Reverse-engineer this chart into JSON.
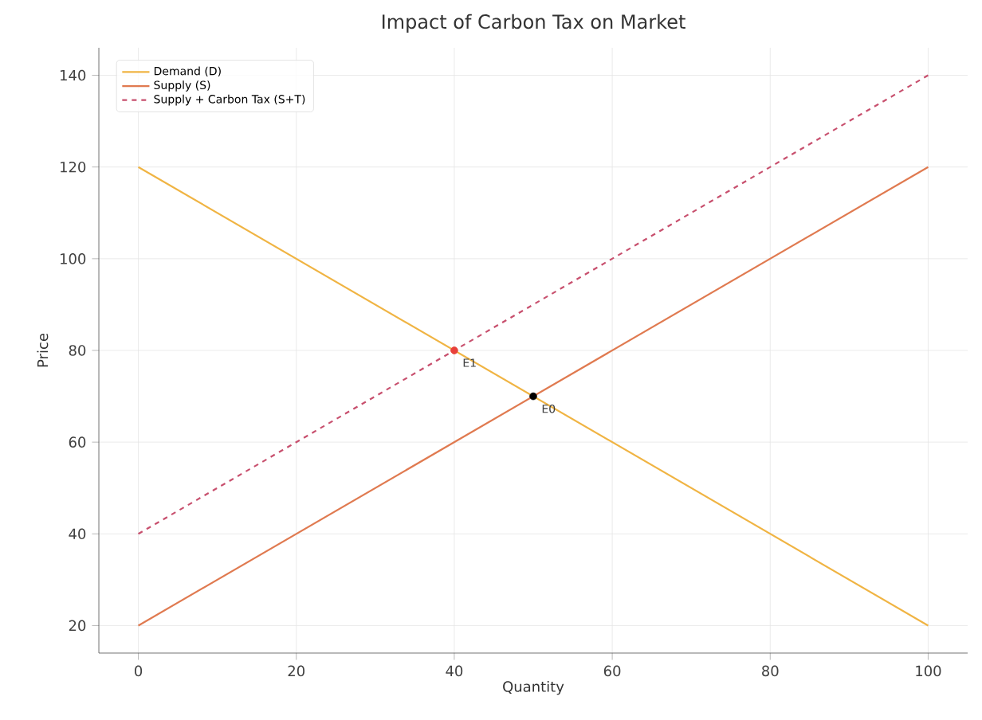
{
  "chart_data": {
    "type": "line",
    "title": "Impact of Carbon Tax on Market",
    "xlabel": "Quantity",
    "ylabel": "Price",
    "series": [
      {
        "name": "Demand (D)",
        "color": "#f0b443",
        "x": [
          0,
          100
        ],
        "values": [
          120,
          20
        ],
        "line_style": "solid"
      },
      {
        "name": "Supply (S)",
        "color": "#e07a50",
        "x": [
          0,
          100
        ],
        "values": [
          20,
          120
        ],
        "line_style": "solid"
      },
      {
        "name": "Supply + Carbon Tax (S+T)",
        "color": "#c8506e",
        "x": [
          0,
          100
        ],
        "values": [
          40,
          140
        ],
        "line_style": "dashed"
      },
      {
        "type": "scatter",
        "color": "#e8403a",
        "x": [
          40
        ],
        "values": [
          80
        ]
      },
      {
        "type": "scatter",
        "color": "#000000",
        "x": [
          50
        ],
        "values": [
          70
        ]
      }
    ],
    "annotations": [
      {
        "text": "E1",
        "x": 40,
        "y": 80
      },
      {
        "text": "E0",
        "x": 50,
        "y": 70
      }
    ],
    "xlim": [
      -5,
      105
    ],
    "ylim": [
      14,
      146
    ],
    "xticks": [
      0,
      20,
      40,
      60,
      80,
      100
    ],
    "yticks": [
      20,
      40,
      60,
      80,
      100,
      120,
      140
    ],
    "grid": true,
    "legend": "top left"
  }
}
